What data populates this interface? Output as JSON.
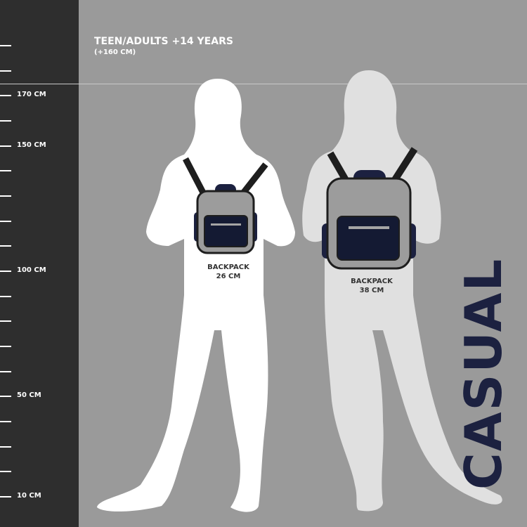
{
  "header": {
    "title": "TEEN/ADULTS +14 YEARS",
    "subtitle": "(+160 CM)"
  },
  "ruler": {
    "labels": [
      {
        "text": "170 CM",
        "index": 2
      },
      {
        "text": "150 CM",
        "index": 4
      },
      {
        "text": "100 CM",
        "index": 9
      },
      {
        "text": "50 CM",
        "index": 14
      },
      {
        "text": "10 CM",
        "index": 18
      }
    ]
  },
  "backpacks": [
    {
      "label": "BACKPACK",
      "size": "26 CM"
    },
    {
      "label": "BACKPACK",
      "size": "38 CM"
    }
  ],
  "brand": {
    "text": "CASUAL"
  },
  "colors": {
    "ruler": "#2e2e2e",
    "background": "#9a9a9a",
    "figure_left": "#ffffff",
    "figure_right": "#e0e0e0",
    "navy": "#1c2140",
    "bag": "#9c9c9c"
  }
}
